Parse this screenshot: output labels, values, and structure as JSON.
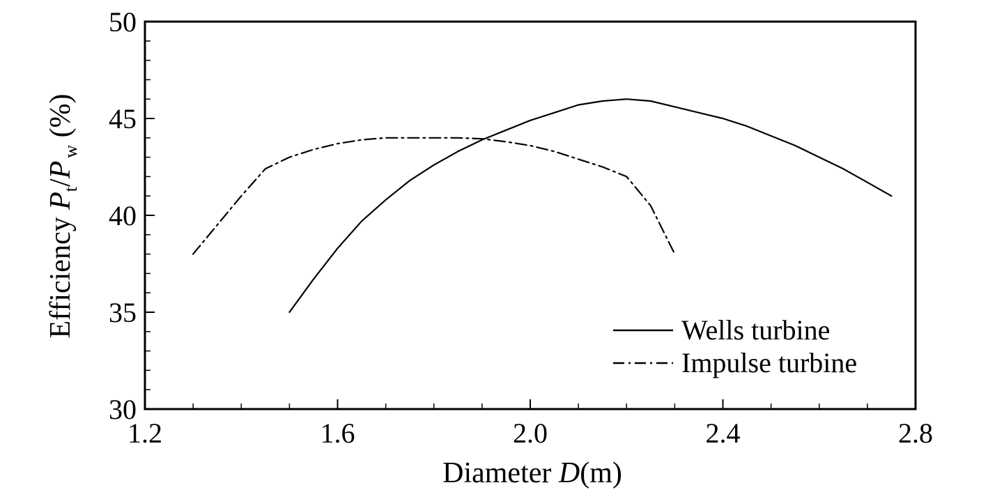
{
  "chart_data": {
    "type": "line",
    "xlabel_prefix": "Diameter ",
    "xlabel_var": "D",
    "xlabel_unit": "(m)",
    "ylabel_prefix": "Efficiency ",
    "ylabel_var1": "P",
    "ylabel_sub1": "t",
    "ylabel_slash": "/",
    "ylabel_var2": "P",
    "ylabel_sub2": "w",
    "ylabel_unit": " (%)",
    "xlim": [
      1.2,
      2.8
    ],
    "ylim": [
      30,
      50
    ],
    "xticks": [
      1.2,
      1.6,
      2.0,
      2.4,
      2.8
    ],
    "xtick_labels": [
      "1.2",
      "1.6",
      "2.0",
      "2.4",
      "2.8"
    ],
    "xminor": [
      1.3,
      1.4,
      1.5,
      1.7,
      1.8,
      1.9,
      2.1,
      2.2,
      2.3,
      2.5,
      2.6,
      2.7
    ],
    "yticks": [
      30,
      35,
      40,
      45,
      50
    ],
    "ytick_labels": [
      "30",
      "35",
      "40",
      "45",
      "50"
    ],
    "yminor": [
      31,
      32,
      33,
      34,
      36,
      37,
      38,
      39,
      41,
      42,
      43,
      44,
      46,
      47,
      48,
      49
    ],
    "legend_position": "lower-right",
    "series": [
      {
        "name": "Wells turbine",
        "style": "solid",
        "x": [
          1.5,
          1.55,
          1.6,
          1.65,
          1.7,
          1.75,
          1.8,
          1.85,
          1.9,
          1.95,
          2.0,
          2.05,
          2.1,
          2.15,
          2.2,
          2.25,
          2.3,
          2.35,
          2.4,
          2.45,
          2.5,
          2.55,
          2.6,
          2.65,
          2.7,
          2.75
        ],
        "y": [
          35.0,
          36.7,
          38.3,
          39.7,
          40.8,
          41.8,
          42.6,
          43.3,
          43.9,
          44.4,
          44.9,
          45.3,
          45.7,
          45.9,
          46.0,
          45.9,
          45.6,
          45.3,
          45.0,
          44.6,
          44.1,
          43.6,
          43.0,
          42.4,
          41.7,
          41.0
        ]
      },
      {
        "name": "Impulse turbine",
        "style": "dashdot",
        "x": [
          1.3,
          1.35,
          1.4,
          1.45,
          1.5,
          1.55,
          1.6,
          1.65,
          1.7,
          1.75,
          1.8,
          1.85,
          1.9,
          1.95,
          2.0,
          2.05,
          2.1,
          2.15,
          2.2,
          2.25,
          2.3
        ],
        "y": [
          38.0,
          39.5,
          41.0,
          42.4,
          43.0,
          43.4,
          43.7,
          43.9,
          44.0,
          44.0,
          44.0,
          44.0,
          43.95,
          43.8,
          43.6,
          43.3,
          42.9,
          42.5,
          42.0,
          40.5,
          38.0
        ]
      }
    ]
  }
}
